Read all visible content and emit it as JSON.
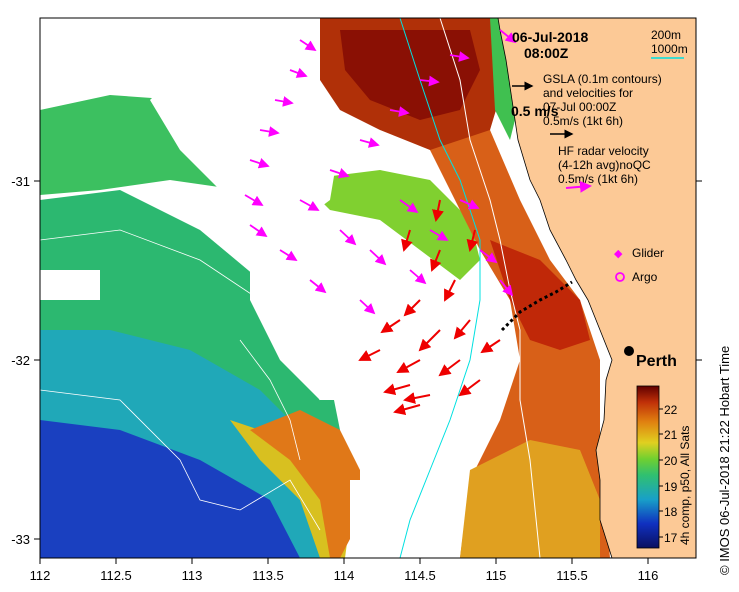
{
  "map": {
    "date": "06-Jul-2018",
    "time": "08:00Z",
    "contour_legend": [
      "200m",
      "1000m"
    ],
    "gsla_lines": [
      "GSLA (0.1m contours)",
      "and velocities for",
      "07-Jul 00:00Z"
    ],
    "gsla_scale": "0.5m/s (1kt 6h)",
    "gsla_big_scale": "0.5 m/s",
    "hf_lines": [
      "HF radar velocity",
      "(4-12h avg)noQC"
    ],
    "hf_scale": "0.5m/s (1kt 6h)",
    "glider_label": "Glider",
    "argo_label": "Argo",
    "city_label": "Perth",
    "colorbar_title": "4h comp, p50, All Sats",
    "colorbar_ticks": [
      "22",
      "21",
      "20",
      "19",
      "18",
      "17"
    ],
    "credit": "© IMOS 06-Jul-2018 21:22 Hobart Time",
    "x_ticks": [
      "112",
      "112.5",
      "113",
      "113.5",
      "114",
      "114.5",
      "115",
      "115.5",
      "116"
    ],
    "y_ticks": [
      "-31",
      "-32",
      "-33"
    ],
    "colors": {
      "land": "#fcc996",
      "hf_arrow": "#ff00ff",
      "gsla_arrow": "#ee0000",
      "contour_200": "#ffffff",
      "contour_1000": "#00ffff"
    }
  }
}
